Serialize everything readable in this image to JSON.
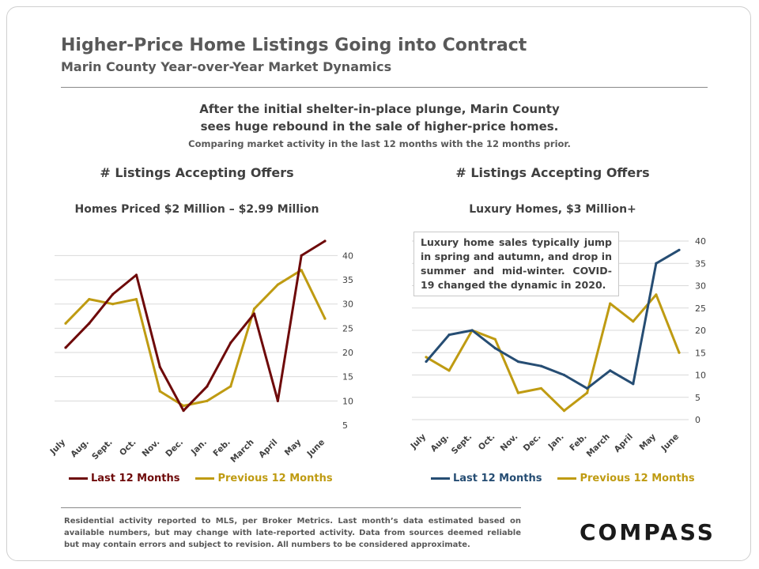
{
  "header": {
    "title": "Higher-Price Home Listings Going into Contract",
    "subtitle": "Marin County  Year-over-Year  Market  Dynamics"
  },
  "intro": {
    "line1": "After the initial shelter-in-place plunge, Marin County",
    "line2": "sees huge rebound in the sale of higher-price homes.",
    "note": "Comparing market activity in the last 12 months with the 12 months prior."
  },
  "annotation": "Luxury home sales typically jump in spring and autumn, and drop in summer and mid-winter. COVID-19 changed the dynamic in 2020.",
  "footer": {
    "text": "Residential activity reported to MLS, per Broker Metrics. Last month’s data estimated based on available numbers, but may change with late-reported activity. Data from sources deemed reliable but may contain errors and subject to revision. All numbers to be considered approximate.",
    "logo": "COMPASS"
  },
  "colors": {
    "left_last": "#6e0a0a",
    "right_last": "#264d73",
    "previous": "#bf9b12",
    "grid": "#d9d9d9"
  },
  "chart_data": [
    {
      "type": "line",
      "title": "# Listings  Accepting  Offers",
      "subtitle": "Homes Priced $2 Million – $2.99 Million",
      "categories": [
        "July",
        "Aug.",
        "Sept.",
        "Oct.",
        "Nov.",
        "Dec.",
        "Jan.",
        "Feb.",
        "March",
        "April",
        "May",
        "June"
      ],
      "yticks": [
        5,
        10,
        15,
        20,
        25,
        30,
        35,
        40
      ],
      "ylim": [
        5,
        43
      ],
      "grid": true,
      "series": [
        {
          "name": "Last 12 Months",
          "values": [
            21,
            26,
            32,
            36,
            17,
            8,
            13,
            22,
            28,
            10,
            40,
            43
          ]
        },
        {
          "name": "Previous 12 Months",
          "values": [
            26,
            31,
            30,
            31,
            12,
            9,
            10,
            13,
            29,
            34,
            37,
            27
          ]
        }
      ]
    },
    {
      "type": "line",
      "title": "# Listings  Accepting  Offers",
      "subtitle": "Luxury Homes, $3 Million+",
      "categories": [
        "July",
        "Aug.",
        "Sept.",
        "Oct.",
        "Nov.",
        "Dec.",
        "Jan.",
        "Feb.",
        "March",
        "April",
        "May",
        "June"
      ],
      "yticks": [
        0,
        5,
        10,
        15,
        20,
        25,
        30,
        35,
        40
      ],
      "ylim": [
        0,
        40
      ],
      "grid": true,
      "series": [
        {
          "name": "Last 12 Months",
          "values": [
            13,
            19,
            20,
            16,
            13,
            12,
            10,
            7,
            11,
            8,
            35,
            38
          ]
        },
        {
          "name": "Previous 12 Months",
          "values": [
            14,
            11,
            20,
            18,
            6,
            7,
            2,
            6,
            26,
            22,
            28,
            15
          ]
        }
      ]
    }
  ]
}
